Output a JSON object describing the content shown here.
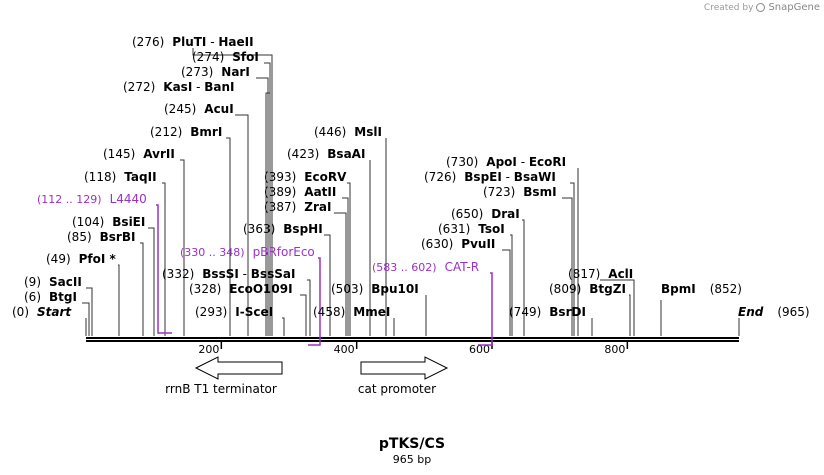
{
  "credit": {
    "prefix": "Created by",
    "brand": "SnapGene"
  },
  "plasmid": {
    "name": "pTKS/CS",
    "length_label": "965 bp"
  },
  "colors": {
    "enzyme": "#000000",
    "primer": "#9b30c8",
    "feature": "#000000"
  },
  "ruler": {
    "ticks": [
      {
        "pos": 200,
        "label": "200"
      },
      {
        "pos": 400,
        "label": "400"
      },
      {
        "pos": 600,
        "label": "600"
      },
      {
        "pos": 800,
        "label": "800"
      }
    ]
  },
  "sites": [
    {
      "pos": "(276)",
      "name": "PluTI",
      "name2": "HaeII"
    },
    {
      "pos": "(274)",
      "name": "SfoI"
    },
    {
      "pos": "(273)",
      "name": "NarI"
    },
    {
      "pos": "(272)",
      "name": "KasI",
      "name2": "BanI"
    },
    {
      "pos": "(245)",
      "name": "AcuI"
    },
    {
      "pos": "(212)",
      "name": "BmrI"
    },
    {
      "pos": "(145)",
      "name": "AvrII"
    },
    {
      "pos": "(118)",
      "name": "TaqII"
    },
    {
      "pos": "(104)",
      "name": "BsiEI"
    },
    {
      "pos": "(85)",
      "name": "BsrBI"
    },
    {
      "pos": "(49)",
      "name": "PfoI *"
    },
    {
      "pos": "(9)",
      "name": "SacII"
    },
    {
      "pos": "(6)",
      "name": "BtgI"
    },
    {
      "pos": "(0)",
      "name": "Start"
    },
    {
      "pos": "(446)",
      "name": "MslI"
    },
    {
      "pos": "(423)",
      "name": "BsaAI"
    },
    {
      "pos": "(393)",
      "name": "EcoRV"
    },
    {
      "pos": "(389)",
      "name": "AatII"
    },
    {
      "pos": "(387)",
      "name": "ZraI"
    },
    {
      "pos": "(363)",
      "name": "BspHI"
    },
    {
      "pos": "(332)",
      "name": "BssSI",
      "name2": "BssSaI"
    },
    {
      "pos": "(328)",
      "name": "EcoO109I"
    },
    {
      "pos": "(293)",
      "name": "I-SceI"
    },
    {
      "pos": "(458)",
      "name": "MmeI"
    },
    {
      "pos": "(503)",
      "name": "Bpu10I"
    },
    {
      "pos": "(730)",
      "name": "ApoI",
      "name2": "EcoRI"
    },
    {
      "pos": "(726)",
      "name": "BspEI",
      "name2": "BsaWI"
    },
    {
      "pos": "(723)",
      "name": "BsmI"
    },
    {
      "pos": "(650)",
      "name": "DraI"
    },
    {
      "pos": "(631)",
      "name": "TsoI"
    },
    {
      "pos": "(630)",
      "name": "PvuII"
    },
    {
      "pos": "(817)",
      "name": "AclI"
    },
    {
      "pos": "(809)",
      "name": "BtgZI"
    },
    {
      "pos": "(749)",
      "name": "BsrDI"
    },
    {
      "name": "BpmI",
      "pos": "(852)"
    },
    {
      "name": "End",
      "pos": "(965)"
    }
  ],
  "primers": [
    {
      "range": "(112 .. 129)",
      "name": "L4440"
    },
    {
      "range": "(330 .. 348)",
      "name": "pBRforEco"
    },
    {
      "range": "(583 .. 602)",
      "name": "CAT-R"
    }
  ],
  "features": [
    {
      "name": "rrnB T1 terminator",
      "direction": "left"
    },
    {
      "name": "cat promoter",
      "direction": "right"
    }
  ]
}
